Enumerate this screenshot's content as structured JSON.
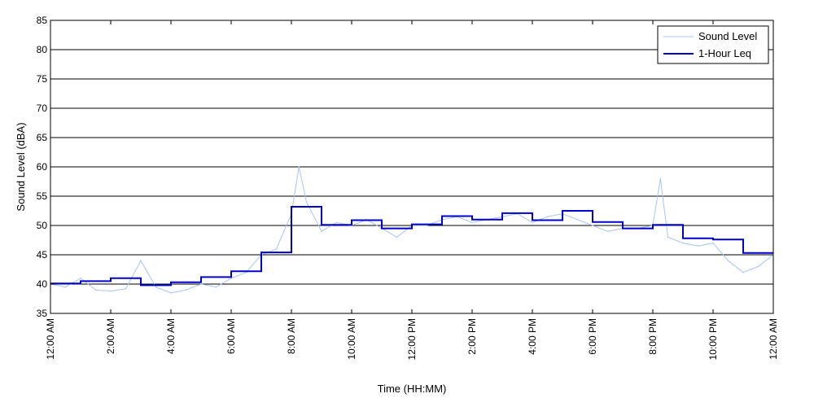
{
  "chart_data": {
    "type": "line",
    "xlabel": "Time (HH:MM)",
    "ylabel": "Sound Level (dBA)",
    "xlim": [
      0,
      24
    ],
    "ylim": [
      35,
      85
    ],
    "y_ticks": [
      35,
      40,
      45,
      50,
      55,
      60,
      65,
      70,
      75,
      80,
      85
    ],
    "x_ticks": [
      {
        "hour": 0,
        "label": "12:00 AM"
      },
      {
        "hour": 2,
        "label": "2:00 AM"
      },
      {
        "hour": 4,
        "label": "4:00 AM"
      },
      {
        "hour": 6,
        "label": "6:00 AM"
      },
      {
        "hour": 8,
        "label": "8:00 AM"
      },
      {
        "hour": 10,
        "label": "10:00 AM"
      },
      {
        "hour": 12,
        "label": "12:00 PM"
      },
      {
        "hour": 14,
        "label": "2:00 PM"
      },
      {
        "hour": 16,
        "label": "4:00 PM"
      },
      {
        "hour": 18,
        "label": "6:00 PM"
      },
      {
        "hour": 20,
        "label": "8:00 PM"
      },
      {
        "hour": 22,
        "label": "10:00 PM"
      },
      {
        "hour": 24,
        "label": "12:00 AM"
      }
    ],
    "grid": "horizontal",
    "legend_position": "top-right",
    "series": [
      {
        "name": "Sound Level",
        "color": "#a9c4f5",
        "kind": "line",
        "x": [
          0,
          0.5,
          1,
          1.5,
          2,
          2.5,
          3,
          3.5,
          4,
          4.5,
          5,
          5.5,
          6,
          6.5,
          7,
          7.5,
          8,
          8.25,
          8.5,
          9,
          9.5,
          10,
          10.5,
          11,
          11.5,
          12,
          12.5,
          13,
          13.5,
          14,
          14.5,
          15,
          15.5,
          16,
          16.5,
          17,
          17.5,
          18,
          18.5,
          19,
          19.5,
          20,
          20.25,
          20.5,
          21,
          21.5,
          22,
          22.5,
          23,
          23.5,
          24
        ],
        "values": [
          40,
          39.5,
          41,
          39,
          38.8,
          39.2,
          44,
          39.5,
          38.5,
          39,
          40,
          39.5,
          41,
          42,
          45,
          46,
          52,
          60,
          54,
          49,
          50.5,
          50,
          51,
          49.5,
          48,
          50,
          50,
          51,
          51.5,
          50.5,
          51,
          51.5,
          52,
          50.5,
          51.5,
          52,
          51,
          50,
          49,
          49.5,
          49.5,
          50,
          58,
          48,
          47,
          46.5,
          47,
          44,
          42,
          43,
          45
        ]
      },
      {
        "name": "1-Hour Leq",
        "color": "#0000cc",
        "kind": "step",
        "hour_starts": [
          0,
          1,
          2,
          3,
          4,
          5,
          6,
          7,
          8,
          9,
          10,
          11,
          12,
          13,
          14,
          15,
          16,
          17,
          18,
          19,
          20,
          21,
          22,
          23
        ],
        "values": [
          40.1,
          40.5,
          41.0,
          39.8,
          40.3,
          41.2,
          42.2,
          45.4,
          53.2,
          50.1,
          50.9,
          49.5,
          50.2,
          51.6,
          51.0,
          52.1,
          50.9,
          52.5,
          50.6,
          49.5,
          50.1,
          47.8,
          47.6,
          45.3
        ]
      }
    ]
  }
}
